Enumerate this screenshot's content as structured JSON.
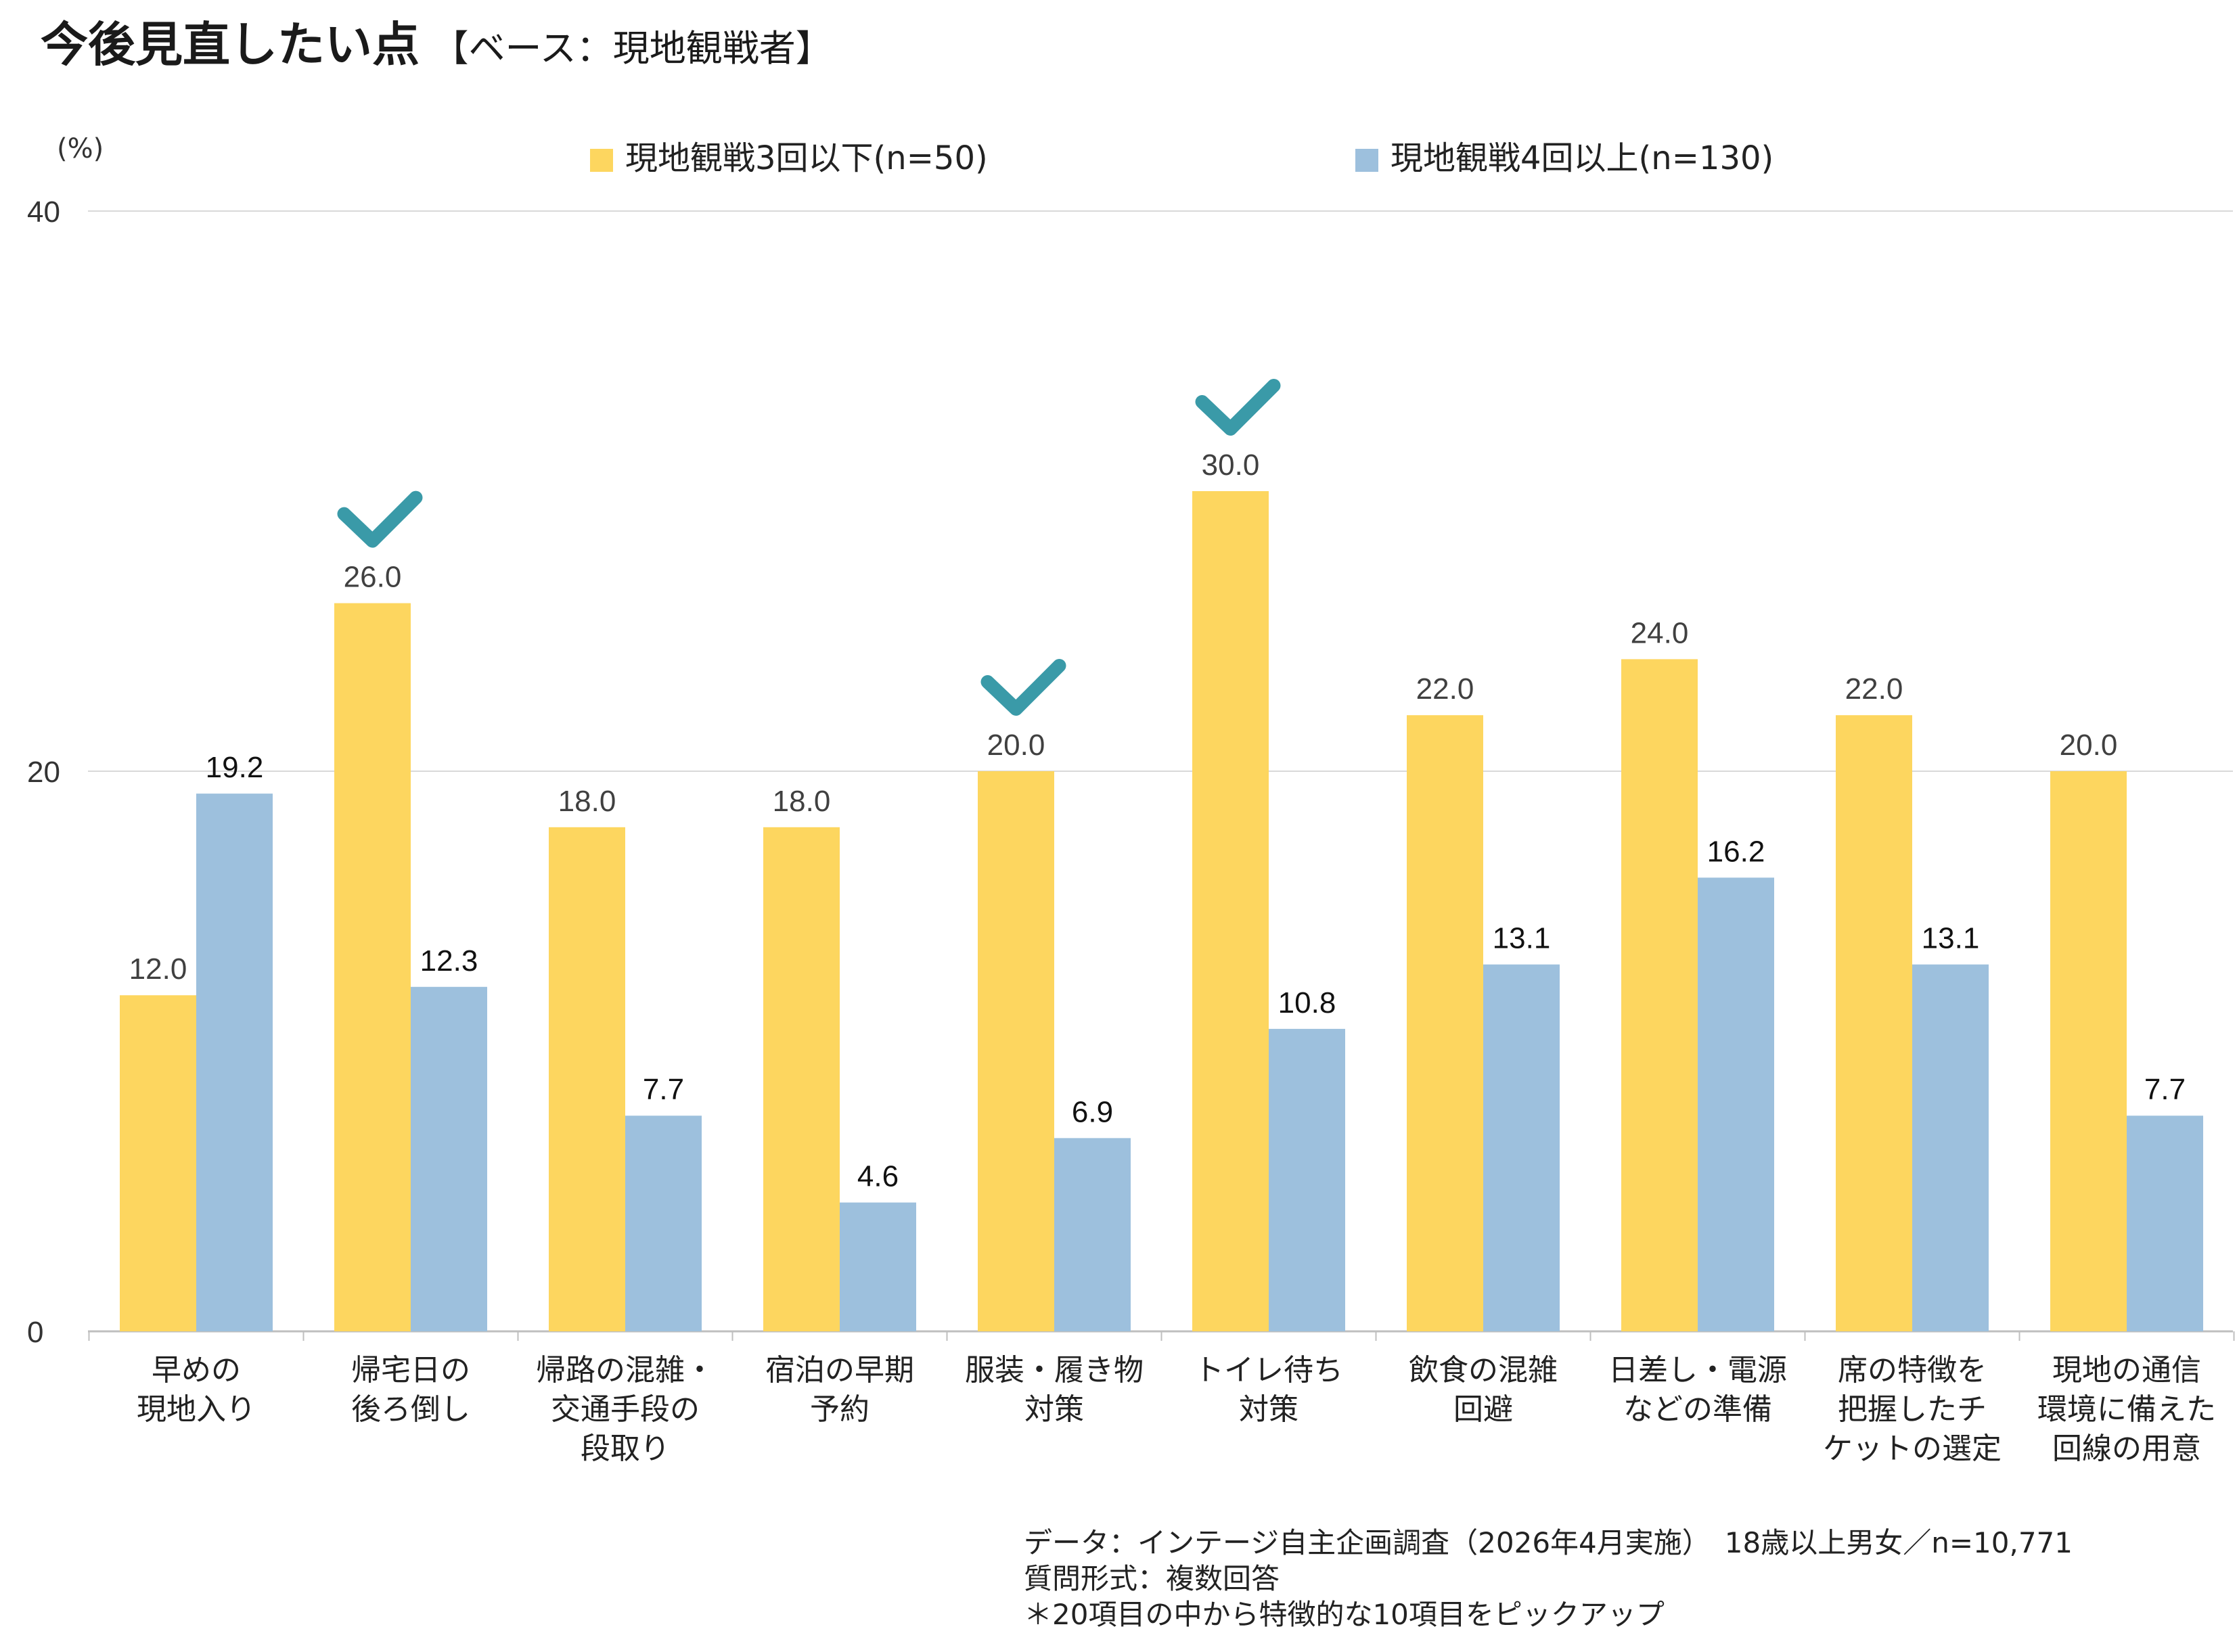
{
  "title": {
    "main": "今後見直したい点",
    "sub": "【ベース：現地観戦者】"
  },
  "colors": {
    "series_a": "#FDD65F",
    "series_b": "#9DC0DD",
    "check": "#3A9AA8",
    "grid": "#D9D9D9",
    "axis": "#BFBFBF"
  },
  "chart_data": {
    "type": "bar",
    "unit": "(%)",
    "ylim": [
      0,
      40
    ],
    "yticks": [
      "0",
      "20",
      "40"
    ],
    "grid": true,
    "legend_position": "top",
    "categories": [
      [
        "早めの",
        "現地入り"
      ],
      [
        "帰宅日の",
        "後ろ倒し"
      ],
      [
        "帰路の混雑・",
        "交通手段の",
        "段取り"
      ],
      [
        "宿泊の早期",
        "予約"
      ],
      [
        "服装・履き物",
        "対策"
      ],
      [
        "トイレ待ち",
        "対策"
      ],
      [
        "飲食の混雑",
        "回避"
      ],
      [
        "日差し・電源",
        "などの準備"
      ],
      [
        "席の特徴を",
        "把握したチ",
        "ケットの選定"
      ],
      [
        "現地の通信",
        "環境に備えた",
        "回線の用意"
      ]
    ],
    "series": [
      {
        "name": "現地観戦3回以下(n=50)",
        "values": [
          12.0,
          26.0,
          18.0,
          18.0,
          20.0,
          30.0,
          22.0,
          24.0,
          22.0,
          20.0
        ],
        "labels": [
          "12.0",
          "26.0",
          "18.0",
          "18.0",
          "20.0",
          "30.0",
          "22.0",
          "24.0",
          "22.0",
          "20.0"
        ]
      },
      {
        "name": "現地観戦4回以上(n=130)",
        "values": [
          19.2,
          12.3,
          7.7,
          4.6,
          6.9,
          10.8,
          13.1,
          16.2,
          13.1,
          7.7
        ],
        "labels": [
          "19.2",
          "12.3",
          "7.7",
          "4.6",
          "6.9",
          "10.8",
          "13.1",
          "16.2",
          "13.1",
          "7.7"
        ]
      }
    ],
    "checkmarks": [
      1,
      4,
      5
    ]
  },
  "footnotes": [
    "データ：インテージ自主企画調査（2026年4月実施）　18歳以上男女／n=10,771",
    "質問形式：複数回答",
    "＊20項目の中から特徴的な10項目をピックアップ"
  ]
}
